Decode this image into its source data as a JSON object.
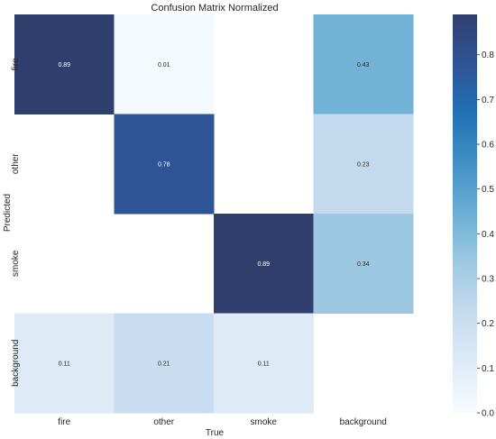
{
  "chart_data": {
    "type": "heatmap",
    "title": "Confusion Matrix Normalized",
    "xlabel": "True",
    "ylabel": "Predicted",
    "x_categories": [
      "fire",
      "other",
      "smoke",
      "background"
    ],
    "y_categories": [
      "fire",
      "other",
      "smoke",
      "background"
    ],
    "values": [
      [
        0.89,
        0.01,
        null,
        0.43
      ],
      [
        null,
        0.78,
        null,
        0.23
      ],
      [
        null,
        null,
        0.89,
        0.34
      ],
      [
        0.11,
        0.21,
        0.11,
        null
      ]
    ],
    "cell_labels": [
      [
        "0.89",
        "0.01",
        "",
        "0.43"
      ],
      [
        "",
        "0.78",
        "",
        "0.23"
      ],
      [
        "",
        "",
        "0.89",
        "0.34"
      ],
      [
        "0.11",
        "0.21",
        "0.11",
        ""
      ]
    ],
    "colorbar": {
      "range": [
        0.0,
        0.89
      ],
      "ticks": [
        0.0,
        0.1,
        0.2,
        0.3,
        0.4,
        0.5,
        0.6,
        0.7,
        0.8
      ],
      "tick_labels": [
        "0.0",
        "0.1",
        "0.2",
        "0.3",
        "0.4",
        "0.5",
        "0.6",
        "0.7",
        "0.8"
      ]
    },
    "colormap": [
      "#f7fbff",
      "#deebf7",
      "#c6dbef",
      "#9ecae1",
      "#6baed6",
      "#4292c6",
      "#2171b5",
      "#2f5597",
      "#313f6e"
    ],
    "grid": false
  }
}
